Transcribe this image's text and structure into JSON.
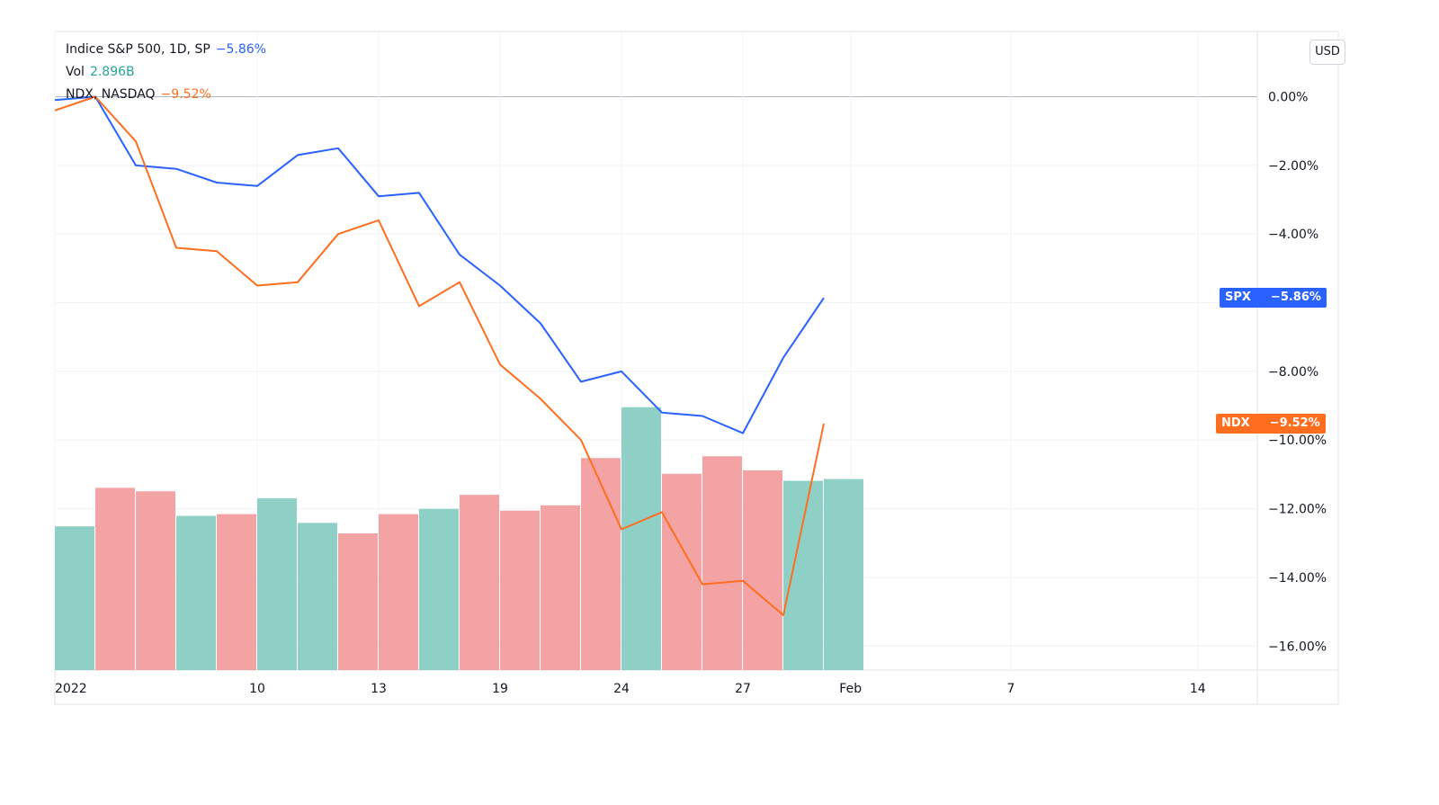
{
  "legend": {
    "spx_title": "Indice S&P 500, 1D, SP",
    "spx_value": "−5.86%",
    "vol_title": "Vol",
    "vol_value": "2.896B",
    "ndx_title": "NDX, NASDAQ",
    "ndx_value": "−9.52%"
  },
  "currency_label": "USD",
  "price_tags": {
    "spx": {
      "symbol": "SPX",
      "value": "−5.86%"
    },
    "ndx": {
      "symbol": "NDX",
      "value": "−9.52%"
    }
  },
  "colors": {
    "spx": "#2962ff",
    "ndx": "#ff6d1f",
    "vol_up": "#8fd0c6",
    "vol_down": "#f3a3a3",
    "grid": "#f0f3fa",
    "axis_text": "#131722",
    "zero_line": "#b2b5be"
  },
  "chart_data": {
    "type": "line",
    "title": "Indice S&P 500, 1D, SP",
    "y_unit": "%",
    "ylim": [
      -16.7,
      1.9
    ],
    "y_ticks": [
      0,
      -2,
      -4,
      -6,
      -8,
      -10,
      -12,
      -14,
      -16
    ],
    "y_tick_labels": [
      "0.00%",
      "−2.00%",
      "−4.00%",
      "",
      "−8.00%",
      "−10.00%",
      "−12.00%",
      "−14.00%",
      "−16.00%"
    ],
    "x_days": [
      "2022-01-03",
      "2022-01-04",
      "2022-01-05",
      "2022-01-06",
      "2022-01-07",
      "2022-01-10",
      "2022-01-11",
      "2022-01-12",
      "2022-01-13",
      "2022-01-14",
      "2022-01-18",
      "2022-01-19",
      "2022-01-20",
      "2022-01-21",
      "2022-01-24",
      "2022-01-25",
      "2022-01-26",
      "2022-01-27",
      "2022-01-28",
      "2022-01-31"
    ],
    "x_tick_labels": [
      {
        "label": "2022",
        "date": "2022-01-03"
      },
      {
        "label": "10",
        "date": "2022-01-10"
      },
      {
        "label": "13",
        "date": "2022-01-13"
      },
      {
        "label": "19",
        "date": "2022-01-19"
      },
      {
        "label": "24",
        "date": "2022-01-24"
      },
      {
        "label": "27",
        "date": "2022-01-27"
      },
      {
        "label": "Feb",
        "date": "2022-02-01"
      },
      {
        "label": "7",
        "date": "2022-02-07"
      },
      {
        "label": "14",
        "date": "2022-02-14"
      }
    ],
    "series": [
      {
        "name": "SPX",
        "color": "#2962ff",
        "values": [
          -0.1,
          0.0,
          -2.0,
          -2.1,
          -2.5,
          -2.6,
          -1.7,
          -1.5,
          -2.9,
          -2.8,
          -4.6,
          -5.5,
          -6.6,
          -8.3,
          -8.0,
          -9.2,
          -9.3,
          -9.8,
          -7.6,
          -5.86
        ]
      },
      {
        "name": "NDX",
        "color": "#ff6d1f",
        "values": [
          -0.4,
          0.0,
          -1.3,
          -4.4,
          -4.5,
          -5.5,
          -5.4,
          -4.0,
          -3.6,
          -6.1,
          -5.4,
          -7.8,
          -8.8,
          -10.0,
          -12.6,
          -12.1,
          -14.2,
          -14.1,
          -15.1,
          -9.52
        ]
      }
    ],
    "volume": {
      "name": "Vol",
      "ylim": [
        0,
        6.8
      ],
      "values": [
        4.1,
        5.2,
        5.1,
        4.4,
        4.45,
        4.9,
        4.2,
        3.9,
        4.45,
        4.6,
        5.0,
        4.55,
        4.7,
        6.05,
        7.5,
        5.6,
        6.1,
        5.7,
        5.4,
        5.45
      ],
      "direction": [
        "up",
        "down",
        "down",
        "up",
        "down",
        "up",
        "up",
        "down",
        "down",
        "up",
        "down",
        "down",
        "down",
        "down",
        "up",
        "down",
        "down",
        "down",
        "up",
        "up"
      ]
    }
  }
}
